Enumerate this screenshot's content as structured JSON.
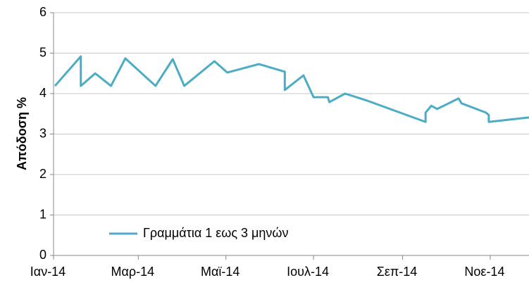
{
  "chart_data": {
    "type": "line",
    "y_label": "Απόδοση %",
    "x": [
      1,
      19,
      19,
      29,
      40,
      50,
      71,
      83,
      91,
      112,
      121,
      143,
      161,
      161,
      174,
      181,
      191,
      192,
      203,
      218,
      259,
      259,
      263,
      267,
      274,
      282,
      284,
      301,
      303,
      303,
      331
    ],
    "series": [
      {
        "name": "Γραμμάτια 1 εως 3 μηνών",
        "color": "#4bacc6",
        "values": [
          4.19,
          4.92,
          4.19,
          4.5,
          4.19,
          4.87,
          4.19,
          4.85,
          4.19,
          4.8,
          4.52,
          4.73,
          4.54,
          4.09,
          4.45,
          3.91,
          3.91,
          3.79,
          4.0,
          3.83,
          3.3,
          3.53,
          3.7,
          3.62,
          3.74,
          3.88,
          3.76,
          3.53,
          3.47,
          3.3,
          3.41
        ]
      }
    ],
    "xlim": [
      0,
      331
    ],
    "xticks": [
      {
        "value": 0,
        "label": "Ιαν-14"
      },
      {
        "value": 59,
        "label": "Μαρ-14"
      },
      {
        "value": 120,
        "label": "Μαϊ-14"
      },
      {
        "value": 181,
        "label": "Ιουλ-14"
      },
      {
        "value": 243,
        "label": "Σεπ-14"
      },
      {
        "value": 304,
        "label": "Νοε-14"
      }
    ],
    "ylim": [
      0,
      6
    ],
    "yticks": [
      0,
      1,
      2,
      3,
      4,
      5,
      6
    ],
    "grid": true,
    "legend": "lower left"
  }
}
